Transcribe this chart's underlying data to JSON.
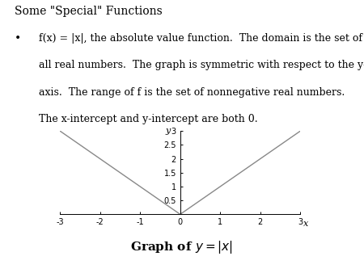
{
  "title": "Some \"Special\" Functions",
  "bullet_lines": [
    "f(x) = |x|, the absolute value function.  The domain is the set of",
    "all real numbers.  The graph is symmetric with respect to the y-",
    "axis.  The range of f is the set of nonnegative real numbers.",
    "The x-intercept and y-intercept are both 0."
  ],
  "graph_caption_plain": "Graph of ",
  "graph_caption_math": "$y = |x|$",
  "x_label": "x",
  "y_label": "y",
  "x_range": [
    -3,
    3
  ],
  "y_range": [
    0,
    3
  ],
  "x_ticks": [
    -3,
    -2,
    -1,
    0,
    1,
    2,
    3
  ],
  "y_ticks": [
    0.5,
    1.0,
    1.5,
    2.0,
    2.5,
    3.0
  ],
  "y_tick_labels": [
    "0.5",
    "1",
    "1.5",
    "2",
    "2.5",
    "3"
  ],
  "background_color": "#ffffff",
  "line_color": "#888888",
  "axis_color": "#000000",
  "text_color": "#000000",
  "title_fontsize": 10,
  "body_fontsize": 9,
  "caption_fontsize": 11,
  "axis_tick_fontsize": 7,
  "axis_label_fontsize": 8
}
